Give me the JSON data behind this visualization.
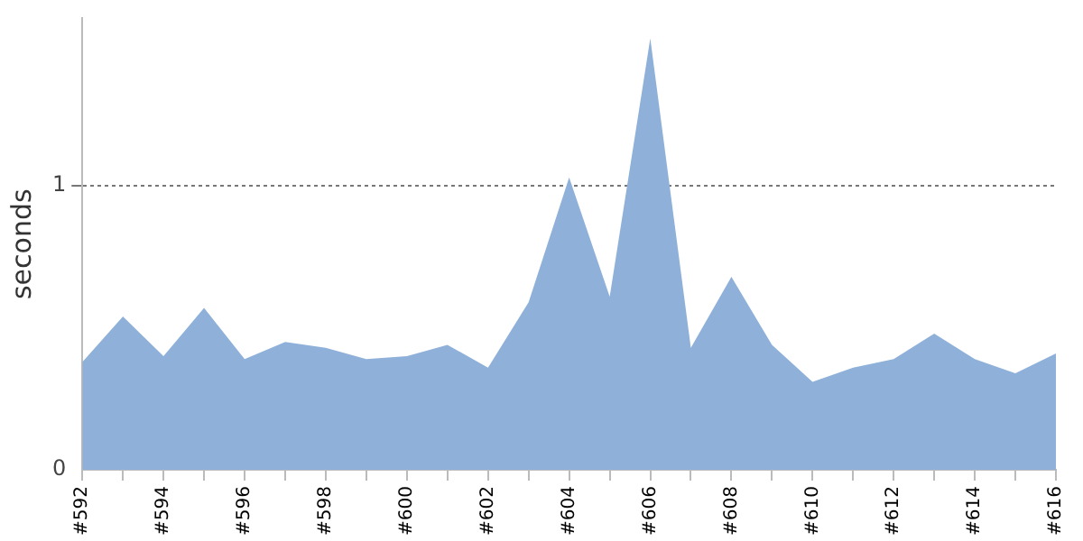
{
  "chart_data": {
    "type": "area",
    "ylabel": "seconds",
    "categories": [
      "#592",
      null,
      "#594",
      null,
      "#596",
      null,
      "#598",
      null,
      "#600",
      null,
      "#602",
      null,
      "#604",
      null,
      "#606",
      null,
      "#608",
      null,
      "#610",
      null,
      "#612",
      null,
      "#614",
      null,
      "#616"
    ],
    "series": [
      {
        "color": "#8fb1d9",
        "values": [
          0.38,
          0.54,
          0.4,
          0.57,
          0.39,
          0.45,
          0.43,
          0.39,
          0.4,
          0.44,
          0.36,
          0.59,
          1.03,
          0.61,
          1.52,
          0.43,
          0.68,
          0.44,
          0.31,
          0.36,
          0.39,
          0.48,
          0.39,
          0.34,
          0.41
        ]
      }
    ],
    "ylim": [
      0,
      1.59
    ],
    "yticks": [
      0,
      1
    ],
    "grid": "y",
    "legend": false
  }
}
